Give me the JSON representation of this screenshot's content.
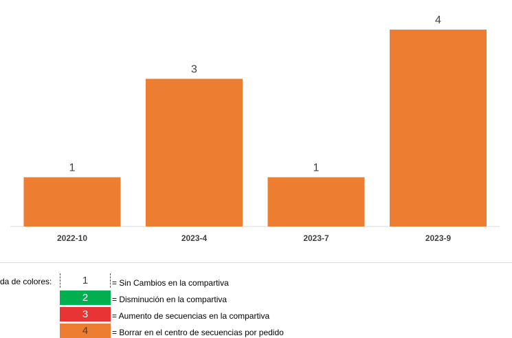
{
  "chart_data": {
    "type": "bar",
    "categories": [
      "2022-10",
      "2023-4",
      "2023-7",
      "2023-9"
    ],
    "values": [
      1,
      3,
      1,
      4
    ],
    "data_labels": [
      "1",
      "3",
      "1",
      "4"
    ],
    "ylim": [
      0,
      4
    ],
    "title": "",
    "xlabel": "",
    "ylabel": "",
    "grid": false,
    "bar_color": "#ed7d31"
  },
  "legend": {
    "label": "da de colores:",
    "items": [
      {
        "value": "1",
        "color": "#ffffff",
        "text": "= Sin Cambios en la compartiva"
      },
      {
        "value": "2",
        "color": "#00b050",
        "text": "= Disminución en la compartiva"
      },
      {
        "value": "3",
        "color": "#e83434",
        "text": "= Aumento de secuencias en la compartiva"
      },
      {
        "value": "4",
        "color": "#ed7d31",
        "text": "= Borrar en el centro de secuencias por pedido"
      }
    ]
  }
}
